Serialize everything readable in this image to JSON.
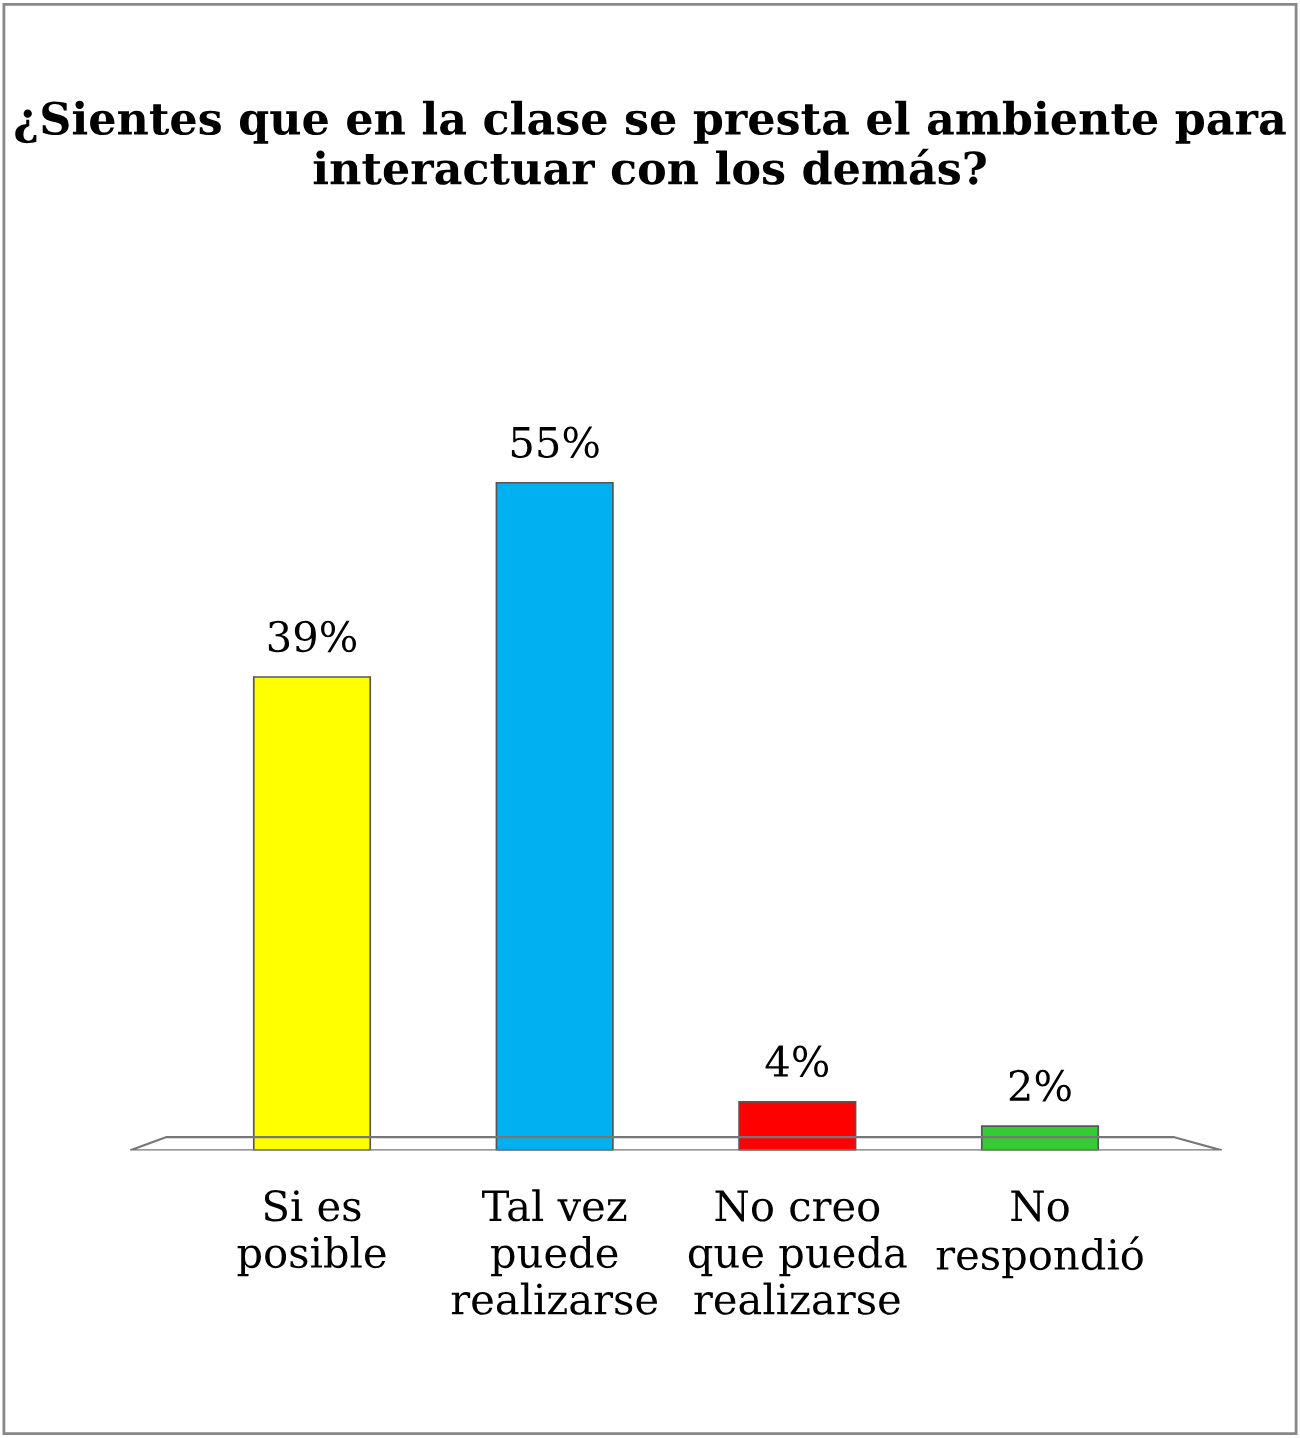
{
  "chart_data": {
    "type": "bar",
    "title": "¿Sientes que en la clase se presta el ambiente para interactuar con los demás?",
    "categories": [
      "Si es\nposible",
      "Tal vez\npuede\nrealizarse",
      "No creo\nque pueda\nrealizarse",
      "No\nrespondió"
    ],
    "values": [
      39,
      55,
      4,
      2
    ],
    "colors": [
      "#ffff00",
      "#00b0f0",
      "#ff0000",
      "#33cc33"
    ],
    "value_labels": [
      "39%",
      "55%",
      "4%",
      "2%"
    ],
    "grid": false
  }
}
